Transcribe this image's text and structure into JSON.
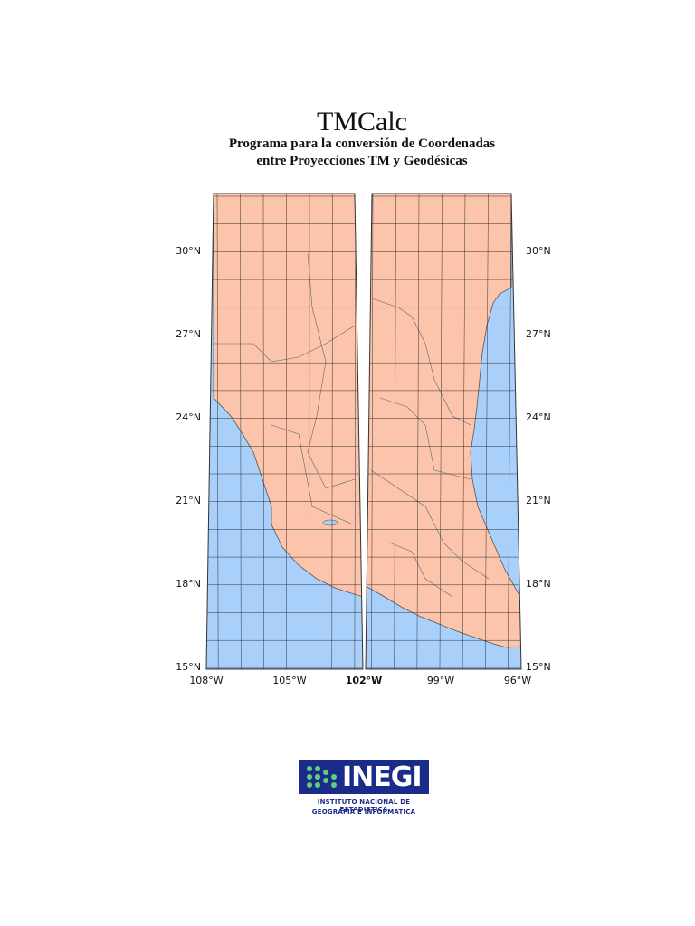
{
  "header": {
    "title": "TMCalc",
    "subtitle": [
      "Programa para la conversión de Coordenadas",
      "entre Proyecciones TM y Geodésicas"
    ]
  },
  "map": {
    "lat_labels": [
      "30°N",
      "27°N",
      "24°N",
      "21°N",
      "18°N",
      "15°N"
    ],
    "lon_labels": [
      "108°W",
      "105°W",
      "102°W",
      "99°W",
      "96°W"
    ]
  },
  "logo": {
    "name": "INEGI",
    "lines": [
      "INSTITUTO NACIONAL DE ESTADISTICA",
      "GEOGRAFIA E INFORMATICA"
    ]
  }
}
